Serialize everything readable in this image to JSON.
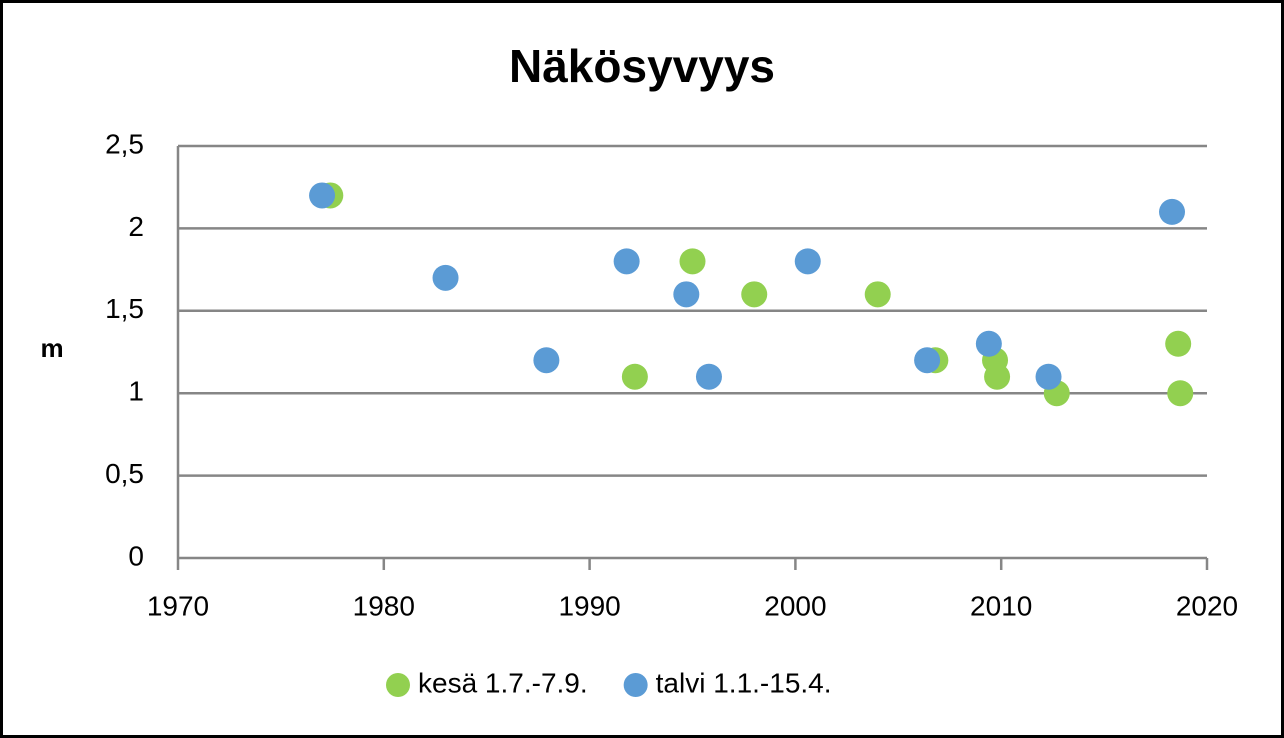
{
  "chart_data": {
    "type": "scatter",
    "title": "Näkösyvyys",
    "ylabel": "m",
    "xlim": [
      1970,
      2020
    ],
    "xticks": [
      1970,
      1980,
      1990,
      2000,
      2010,
      2020
    ],
    "ylim": [
      0,
      2.5
    ],
    "yticks": [
      0,
      {
        "value": 0.5,
        "label": "0,5"
      },
      1,
      {
        "value": 1.5,
        "label": "1,5"
      },
      2,
      {
        "value": 2.5,
        "label": "2,5"
      }
    ],
    "grid": true,
    "legend": "bottom",
    "series": [
      {
        "name": "kesä 1.7.-7.9.",
        "color": "#92d050",
        "x": [
          1977.4,
          1992.2,
          1995.0,
          1998.0,
          2004.0,
          2006.8,
          2009.7,
          2009.8,
          2012.7,
          2018.6,
          2018.7
        ],
        "values": [
          2.2,
          1.1,
          1.8,
          1.6,
          1.6,
          1.2,
          1.2,
          1.1,
          1.0,
          1.3,
          1.0
        ]
      },
      {
        "name": "talvi 1.1.-15.4.",
        "color": "#5b9bd5",
        "x": [
          1977.0,
          1983.0,
          1987.9,
          1991.8,
          1994.7,
          1995.8,
          2000.6,
          2006.4,
          2009.4,
          2012.3,
          2018.3
        ],
        "values": [
          2.2,
          1.7,
          1.2,
          1.8,
          1.6,
          1.1,
          1.8,
          1.2,
          1.3,
          1.1,
          2.1
        ]
      }
    ]
  }
}
